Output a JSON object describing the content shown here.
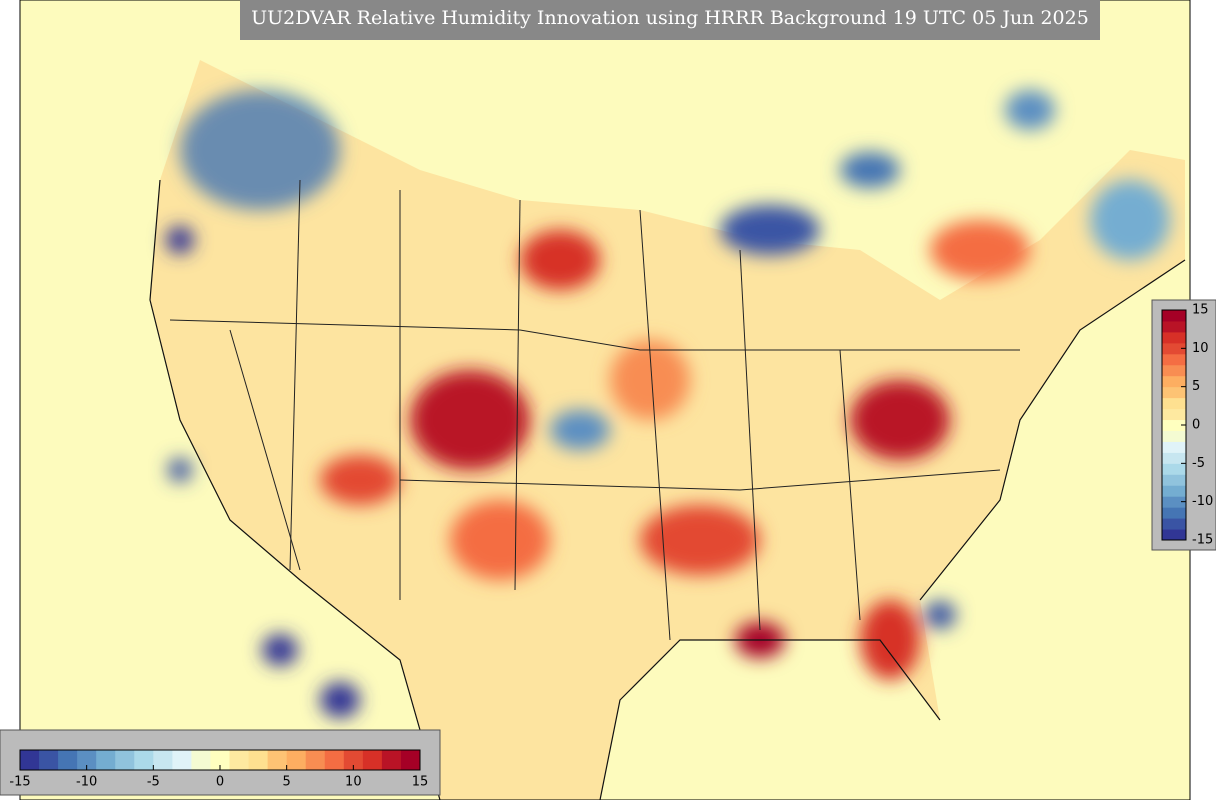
{
  "title": "UU2DVAR Relative Humidity Innovation using HRRR Background 19 UTC 05 Jun 2025",
  "colorbars": [
    {
      "orientation": "vertical",
      "range": [
        -15,
        15
      ],
      "ticks": [
        15,
        10,
        5,
        0,
        -5,
        -10,
        -15
      ]
    },
    {
      "orientation": "horizontal",
      "range": [
        -15,
        15
      ],
      "ticks": [
        -15,
        -10,
        -5,
        0,
        5,
        10,
        15
      ]
    }
  ],
  "colors": [
    "#313695",
    "#3a54a4",
    "#4575b4",
    "#5b8fc2",
    "#74add1",
    "#90c3dd",
    "#abd9e9",
    "#c7e6f0",
    "#e0f3f8",
    "#f4fbd2",
    "#ffffbf",
    "#fee9a0",
    "#fee090",
    "#fdc374",
    "#fdae61",
    "#f88d52",
    "#f46d43",
    "#e34a33",
    "#d73027",
    "#b91326",
    "#a50026"
  ]
}
